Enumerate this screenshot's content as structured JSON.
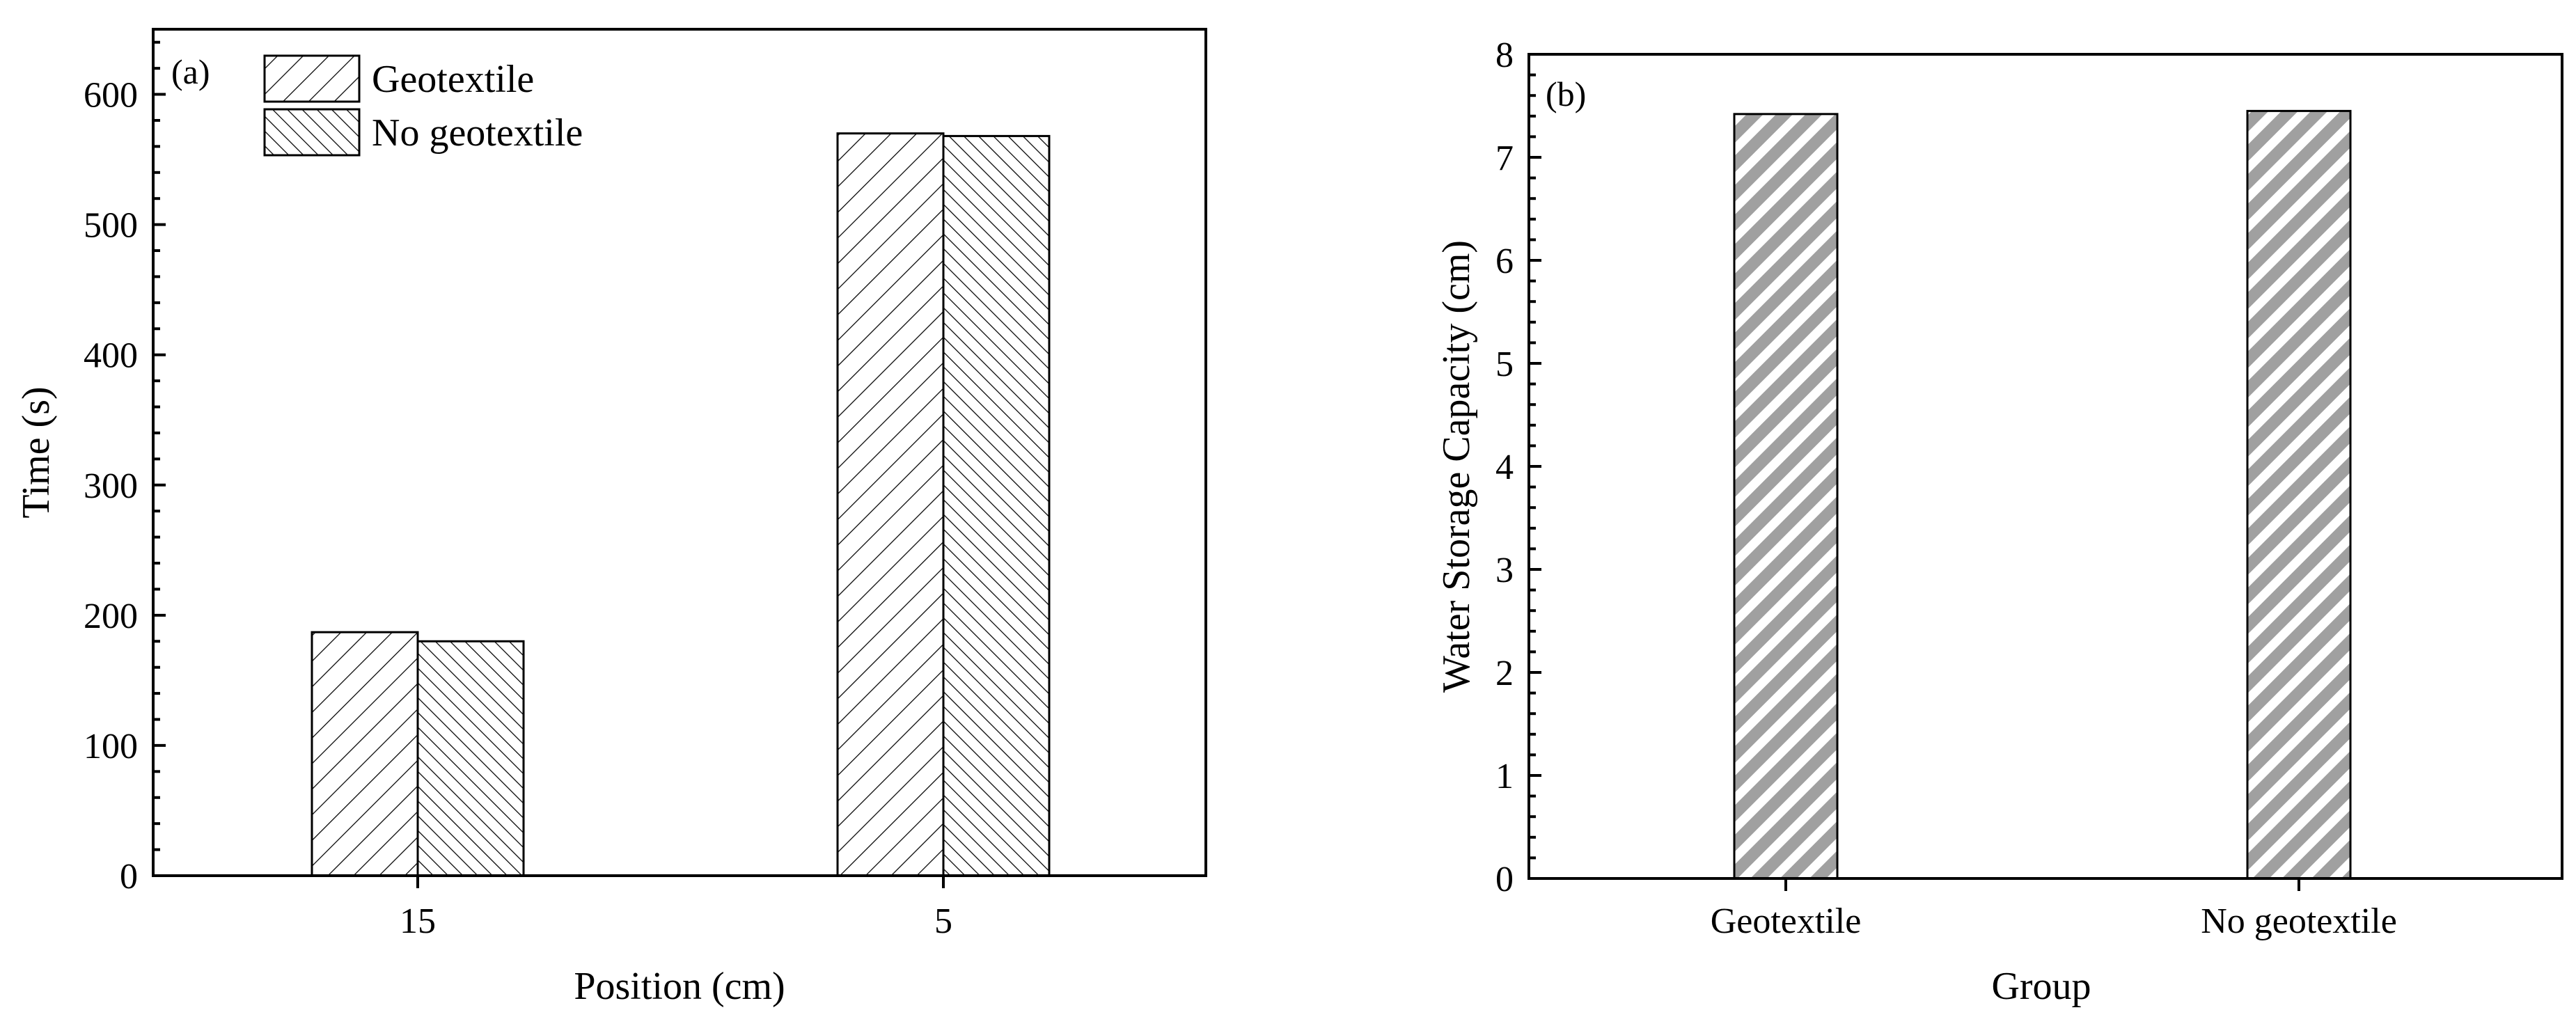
{
  "chart_data": [
    {
      "type": "bar",
      "panel_label": "(a)",
      "categories": [
        "15",
        "5"
      ],
      "series": [
        {
          "name": "Geotextile",
          "values": [
            187,
            570
          ]
        },
        {
          "name": "No geotextile",
          "values": [
            180,
            568
          ]
        }
      ],
      "xlabel": "Position (cm)",
      "ylabel": "Time (s)",
      "ylim": [
        0,
        650
      ],
      "yticks": [
        0,
        100,
        200,
        300,
        400,
        500,
        600
      ],
      "legend": "top-left",
      "grid": false
    },
    {
      "type": "bar",
      "panel_label": "(b)",
      "categories": [
        "Geotextile",
        "No geotextile"
      ],
      "values": [
        7.42,
        7.45
      ],
      "xlabel": "Group",
      "ylabel": "Water Storage Capacity (cm)",
      "ylim": [
        0,
        8
      ],
      "yticks": [
        0,
        1,
        2,
        3,
        4,
        5,
        6,
        7,
        8
      ],
      "grid": false
    }
  ]
}
